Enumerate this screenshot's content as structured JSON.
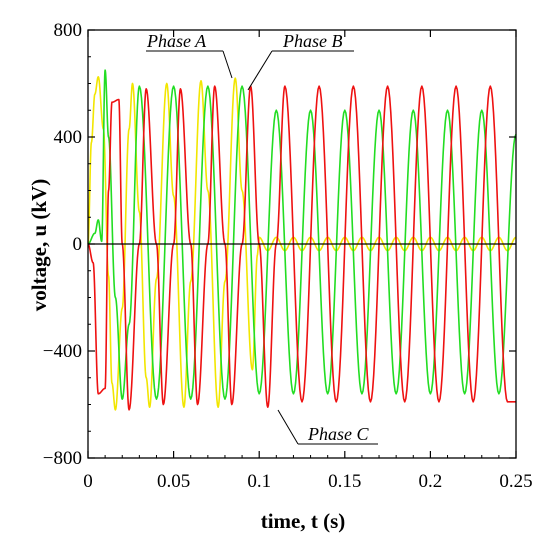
{
  "chart_data": {
    "type": "line",
    "xlabel": "time, t (s)",
    "ylabel": "voltage, u  (kV)",
    "xlim": [
      0,
      0.25
    ],
    "ylim": [
      -800,
      800
    ],
    "x_ticks": [
      "0",
      "0.05",
      "0.1",
      "0.15",
      "0.2",
      "0.25"
    ],
    "x_tick_values": [
      0,
      0.05,
      0.1,
      0.15,
      0.2,
      0.25
    ],
    "y_ticks": [
      "800",
      "400",
      "0",
      "-400",
      "-800"
    ],
    "y_tick_values": [
      800,
      400,
      0,
      -400,
      -800
    ],
    "grid": false,
    "frequency_hz": 50,
    "series": [
      {
        "name": "Phase A",
        "color": "#f2e600",
        "points": [
          [
            0.0,
            0
          ],
          [
            0.002,
            380
          ],
          [
            0.004,
            560
          ],
          [
            0.006,
            625
          ],
          [
            0.009,
            430
          ],
          [
            0.012,
            -120
          ],
          [
            0.014,
            -520
          ],
          [
            0.016,
            -620
          ],
          [
            0.02,
            -240
          ],
          [
            0.024,
            430
          ],
          [
            0.026,
            600
          ],
          [
            0.03,
            120
          ],
          [
            0.034,
            -500
          ],
          [
            0.036,
            -610
          ],
          [
            0.04,
            -130
          ],
          [
            0.046,
            600
          ],
          [
            0.05,
            180
          ],
          [
            0.056,
            -610
          ],
          [
            0.06,
            -140
          ],
          [
            0.066,
            610
          ],
          [
            0.07,
            200
          ],
          [
            0.076,
            -610
          ],
          [
            0.08,
            -140
          ],
          [
            0.086,
            620
          ],
          [
            0.09,
            200
          ],
          [
            0.096,
            -470
          ],
          [
            0.099,
            -40
          ],
          [
            0.1,
            25
          ],
          [
            0.1,
            10
          ],
          [
            0.25,
            0
          ]
        ],
        "steady_state_after_fault": {
          "from": 0.1,
          "amplitude": 25,
          "frequency_hz": 100
        }
      },
      {
        "name": "Phase B",
        "color": "#22dd22",
        "points": [
          [
            0.0,
            0
          ],
          [
            0.004,
            40
          ],
          [
            0.006,
            90
          ],
          [
            0.008,
            10
          ],
          [
            0.01,
            650
          ],
          [
            0.012,
            400
          ],
          [
            0.016,
            -200
          ],
          [
            0.02,
            -580
          ],
          [
            0.024,
            -300
          ],
          [
            0.03,
            590
          ],
          [
            0.04,
            -580
          ],
          [
            0.05,
            590
          ],
          [
            0.06,
            -580
          ],
          [
            0.07,
            590
          ],
          [
            0.08,
            -580
          ],
          [
            0.09,
            590
          ],
          [
            0.1,
            -560
          ],
          [
            0.11,
            500
          ],
          [
            0.12,
            -560
          ],
          [
            0.13,
            500
          ],
          [
            0.14,
            -560
          ],
          [
            0.15,
            500
          ],
          [
            0.16,
            -560
          ],
          [
            0.17,
            500
          ],
          [
            0.18,
            -560
          ],
          [
            0.19,
            500
          ],
          [
            0.2,
            -560
          ],
          [
            0.21,
            500
          ],
          [
            0.22,
            -560
          ],
          [
            0.23,
            500
          ],
          [
            0.24,
            -560
          ],
          [
            0.25,
            410
          ]
        ],
        "steady_state_after_fault": {
          "from": 0.1,
          "amplitude": 520,
          "frequency_hz": 50
        }
      },
      {
        "name": "Phase C",
        "color": "#ee1111",
        "points": [
          [
            0.0,
            0
          ],
          [
            0.003,
            -70
          ],
          [
            0.006,
            -560
          ],
          [
            0.01,
            -540
          ],
          [
            0.012,
            200
          ],
          [
            0.014,
            530
          ],
          [
            0.018,
            540
          ],
          [
            0.02,
            0
          ],
          [
            0.024,
            -620
          ],
          [
            0.03,
            0
          ],
          [
            0.034,
            580
          ],
          [
            0.04,
            0
          ],
          [
            0.044,
            -600
          ],
          [
            0.05,
            0
          ],
          [
            0.054,
            580
          ],
          [
            0.06,
            0
          ],
          [
            0.064,
            -600
          ],
          [
            0.07,
            0
          ],
          [
            0.074,
            590
          ],
          [
            0.08,
            0
          ],
          [
            0.084,
            -600
          ],
          [
            0.09,
            0
          ],
          [
            0.095,
            590
          ],
          [
            0.1,
            0
          ],
          [
            0.105,
            -610
          ],
          [
            0.11,
            0
          ],
          [
            0.115,
            590
          ],
          [
            0.125,
            -590
          ],
          [
            0.135,
            590
          ],
          [
            0.145,
            -590
          ],
          [
            0.155,
            590
          ],
          [
            0.165,
            -590
          ],
          [
            0.175,
            590
          ],
          [
            0.185,
            -590
          ],
          [
            0.195,
            590
          ],
          [
            0.205,
            -590
          ],
          [
            0.215,
            590
          ],
          [
            0.225,
            -590
          ],
          [
            0.235,
            590
          ],
          [
            0.245,
            -590
          ],
          [
            0.25,
            -590
          ]
        ],
        "steady_state_after_fault": {
          "from": 0.1,
          "amplitude": 590,
          "frequency_hz": 50
        }
      }
    ],
    "annotations": [
      {
        "text": "Phase A",
        "series": "Phase A",
        "anchor_x": 0.086,
        "anchor_y": 615
      },
      {
        "text": "Phase B",
        "series": "Phase B",
        "anchor_x": 0.093,
        "anchor_y": 580
      },
      {
        "text": "Phase C",
        "series": "Phase C",
        "anchor_x": 0.109,
        "anchor_y": -610
      }
    ]
  }
}
